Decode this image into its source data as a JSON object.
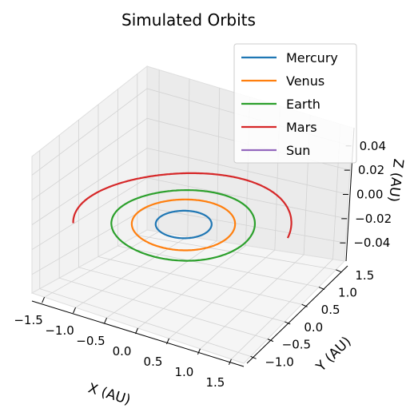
{
  "chart_data": {
    "type": "line",
    "projection": "3d",
    "title": "Simulated Orbits",
    "xlabel": "X (AU)",
    "ylabel": "Y (AU)",
    "zlabel": "Z (AU)",
    "xlim": [
      -1.7,
      1.7
    ],
    "ylim": [
      -1.2,
      1.75
    ],
    "zlim": [
      -0.055,
      0.055
    ],
    "xticks": [
      "−1.5",
      "−1.0",
      "−0.5",
      "0.0",
      "0.5",
      "1.0",
      "1.5"
    ],
    "yticks": [
      "−1.0",
      "−0.5",
      "0.0",
      "0.5",
      "1.0",
      "1.5"
    ],
    "zticks": [
      "−0.04",
      "−0.02",
      "0.00",
      "0.02",
      "0.04"
    ],
    "grid": true,
    "legend_position": "top-right",
    "series": [
      {
        "name": "Mercury",
        "color": "#1f77b4",
        "radius_au": 0.39,
        "arc_fraction": 1.0
      },
      {
        "name": "Venus",
        "color": "#ff7f0e",
        "radius_au": 0.72,
        "arc_fraction": 1.0
      },
      {
        "name": "Earth",
        "color": "#2ca02c",
        "radius_au": 1.0,
        "arc_fraction": 1.0
      },
      {
        "name": "Mars",
        "color": "#d62728",
        "radius_au": 1.52,
        "arc_fraction": 0.55
      },
      {
        "name": "Sun",
        "color": "#9467bd",
        "radius_au": 0.0,
        "arc_fraction": 0.0
      }
    ]
  }
}
